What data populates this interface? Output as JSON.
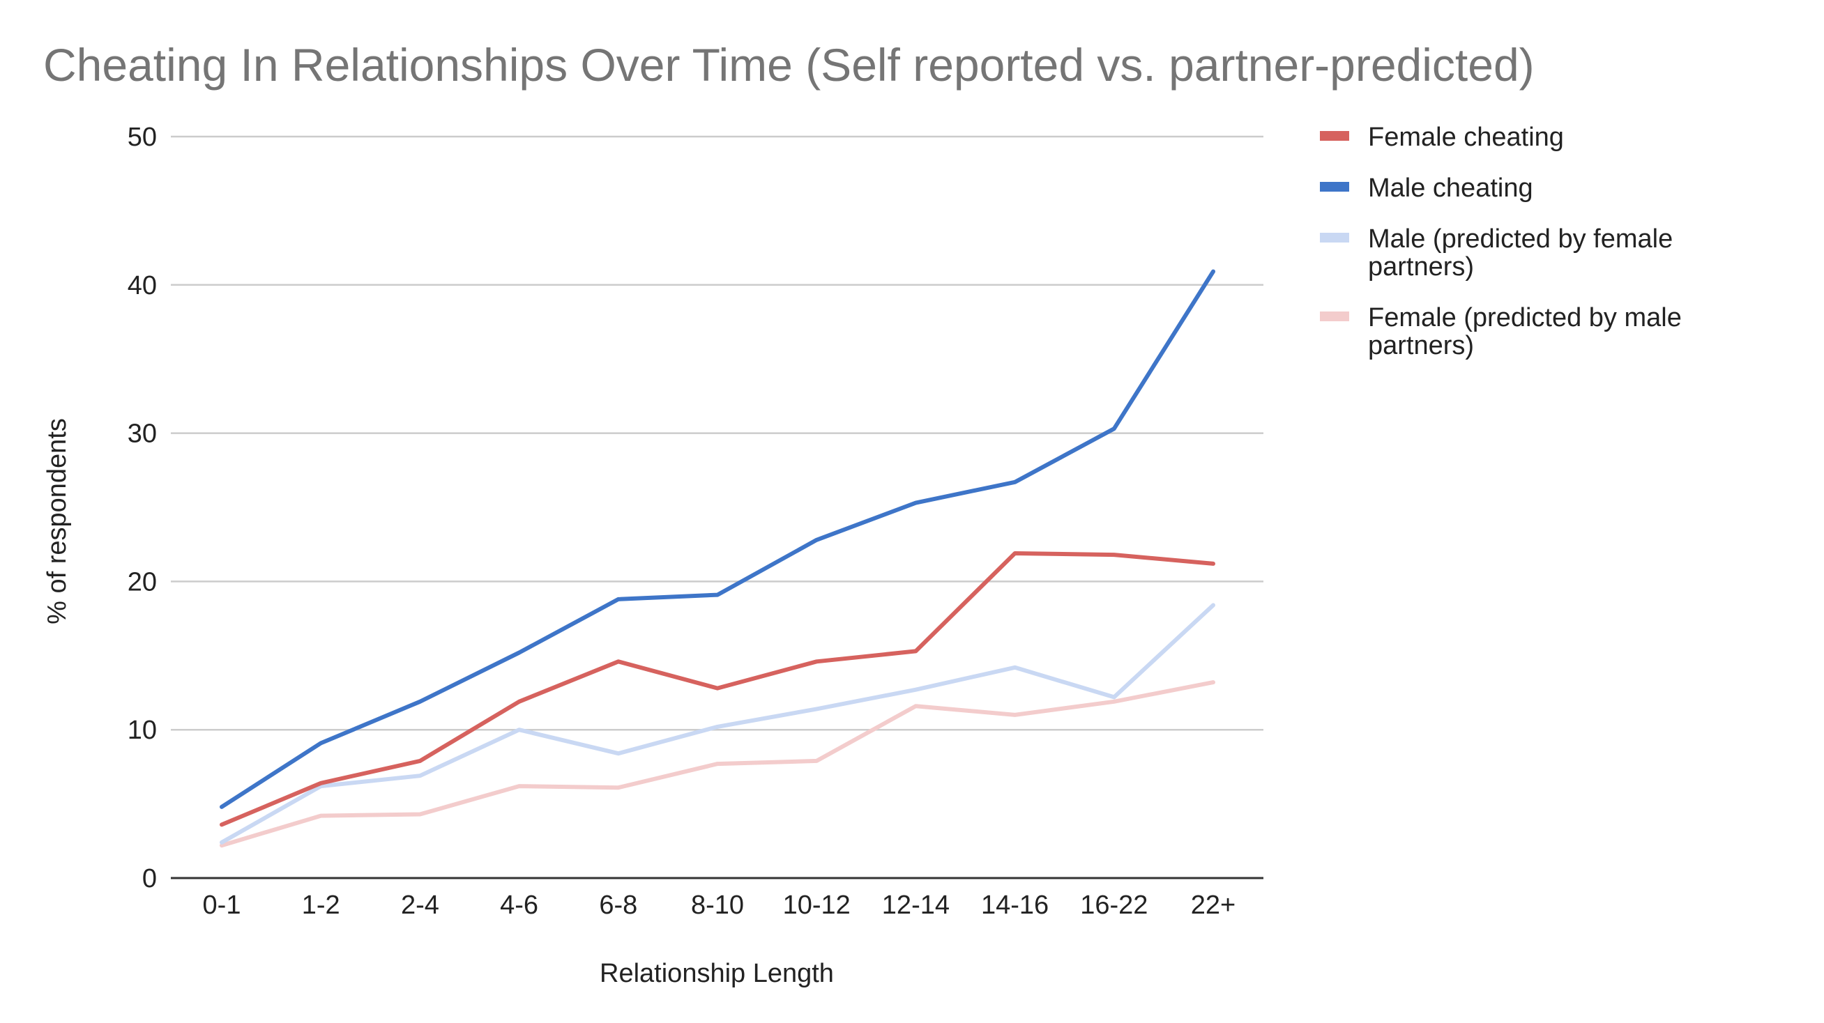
{
  "chart_data": {
    "type": "line",
    "title": "Cheating In Relationships Over Time (Self reported vs. partner-predicted)",
    "xlabel": "Relationship Length",
    "ylabel": "% of respondents",
    "ylim": [
      0,
      50
    ],
    "yticks": [
      "0",
      "10",
      "20",
      "30",
      "40",
      "50"
    ],
    "grid": true,
    "legend_position": "right",
    "categories": [
      "0-1",
      "1-2",
      "2-4",
      "4-6",
      "6-8",
      "8-10",
      "10-12",
      "12-14",
      "14-16",
      "16-22",
      "22+"
    ],
    "series": [
      {
        "name": "Female cheating",
        "color": "#d6625e",
        "legend_lines": [
          "Female cheating"
        ],
        "values": [
          3.6,
          6.4,
          7.9,
          11.9,
          14.6,
          12.8,
          14.6,
          15.3,
          21.9,
          21.8,
          21.2
        ]
      },
      {
        "name": "Male cheating",
        "color": "#3e75c8",
        "legend_lines": [
          "Male cheating"
        ],
        "values": [
          4.8,
          9.1,
          11.9,
          15.2,
          18.8,
          19.1,
          22.8,
          25.3,
          26.7,
          30.3,
          40.9
        ]
      },
      {
        "name": "Male (predicted by female partners)",
        "color": "#c9d8f3",
        "legend_lines": [
          "Male (predicted by female",
          "partners)"
        ],
        "values": [
          2.4,
          6.2,
          6.9,
          10.0,
          8.4,
          10.2,
          11.4,
          12.7,
          14.2,
          12.2,
          18.4
        ]
      },
      {
        "name": "Female (predicted by male partners)",
        "color": "#f3cccc",
        "legend_lines": [
          "Female (predicted by male",
          "partners)"
        ],
        "values": [
          2.2,
          4.2,
          4.3,
          6.2,
          6.1,
          7.7,
          7.9,
          11.6,
          11.0,
          11.9,
          13.2
        ]
      }
    ]
  }
}
